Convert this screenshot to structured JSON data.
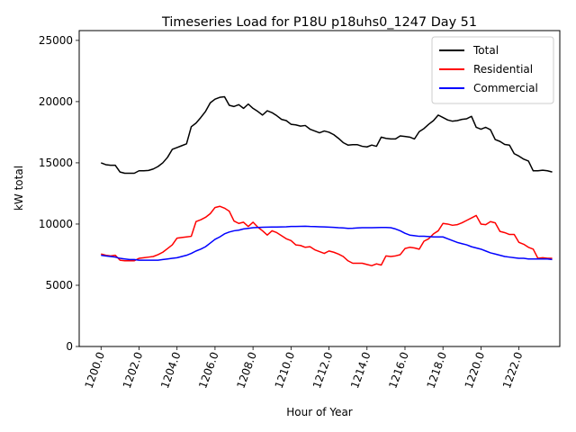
{
  "chart_data": {
    "type": "line",
    "title": "Timeseries Load for P18U p18uhs0_1247  Day 51",
    "xlabel": "Hour of Year",
    "ylabel": "kW total",
    "xlim": [
      1198.85,
      1224.15
    ],
    "ylim": [
      0,
      25800
    ],
    "x_ticks": [
      1200,
      1202,
      1204,
      1206,
      1208,
      1210,
      1212,
      1214,
      1216,
      1218,
      1220,
      1222
    ],
    "x_tick_labels": [
      "1200.0",
      "1202.0",
      "1204.0",
      "1206.0",
      "1208.0",
      "1210.0",
      "1212.0",
      "1214.0",
      "1216.0",
      "1218.0",
      "1220.0",
      "1222.0"
    ],
    "y_ticks": [
      0,
      5000,
      10000,
      15000,
      20000,
      25000
    ],
    "y_tick_labels": [
      "0",
      "5000",
      "10000",
      "15000",
      "20000",
      "25000"
    ],
    "grid": false,
    "legend_position": "top-right",
    "x": [
      1200.0,
      1200.25,
      1200.5,
      1200.75,
      1201.0,
      1201.25,
      1201.5,
      1201.75,
      1202.0,
      1202.25,
      1202.5,
      1202.75,
      1203.0,
      1203.25,
      1203.5,
      1203.75,
      1204.0,
      1204.25,
      1204.5,
      1204.75,
      1205.0,
      1205.25,
      1205.5,
      1205.75,
      1206.0,
      1206.25,
      1206.5,
      1206.75,
      1207.0,
      1207.25,
      1207.5,
      1207.75,
      1208.0,
      1208.25,
      1208.5,
      1208.75,
      1209.0,
      1209.25,
      1209.5,
      1209.75,
      1210.0,
      1210.25,
      1210.5,
      1210.75,
      1211.0,
      1211.25,
      1211.5,
      1211.75,
      1212.0,
      1212.25,
      1212.5,
      1212.75,
      1213.0,
      1213.25,
      1213.5,
      1213.75,
      1214.0,
      1214.25,
      1214.5,
      1214.75,
      1215.0,
      1215.25,
      1215.5,
      1215.75,
      1216.0,
      1216.25,
      1216.5,
      1216.75,
      1217.0,
      1217.25,
      1217.5,
      1217.75,
      1218.0,
      1218.25,
      1218.5,
      1218.75,
      1219.0,
      1219.25,
      1219.5,
      1219.75,
      1220.0,
      1220.25,
      1220.5,
      1220.75,
      1221.0,
      1221.25,
      1221.5,
      1221.75,
      1222.0,
      1222.25,
      1222.5,
      1222.75,
      1223.0,
      1223.25,
      1223.5,
      1223.75
    ],
    "series": [
      {
        "name": "Total",
        "color": "#000000",
        "values": [
          15000,
          14850,
          14800,
          14800,
          14250,
          14150,
          14150,
          14150,
          14350,
          14350,
          14380,
          14500,
          14700,
          15000,
          15450,
          16100,
          16250,
          16400,
          16550,
          17950,
          18250,
          18700,
          19200,
          19900,
          20200,
          20350,
          20400,
          19700,
          19600,
          19750,
          19450,
          19800,
          19450,
          19200,
          18900,
          19250,
          19100,
          18850,
          18550,
          18450,
          18150,
          18100,
          18000,
          18050,
          17750,
          17600,
          17450,
          17600,
          17500,
          17300,
          17000,
          16650,
          16450,
          16480,
          16480,
          16350,
          16300,
          16450,
          16350,
          17100,
          17000,
          16950,
          16950,
          17200,
          17150,
          17100,
          16950,
          17550,
          17800,
          18150,
          18450,
          18900,
          18700,
          18500,
          18400,
          18450,
          18550,
          18600,
          18800,
          17900,
          17750,
          17900,
          17700,
          16900,
          16750,
          16500,
          16450,
          15750,
          15550,
          15300,
          15150,
          14350,
          14350,
          14400,
          14350,
          14250
        ]
      },
      {
        "name": "Residential",
        "color": "#ff0000",
        "values": [
          7550,
          7450,
          7400,
          7450,
          7050,
          7000,
          7000,
          7000,
          7200,
          7250,
          7300,
          7350,
          7500,
          7700,
          8000,
          8300,
          8850,
          8900,
          8950,
          9000,
          10200,
          10350,
          10550,
          10850,
          11350,
          11450,
          11300,
          11050,
          10250,
          10050,
          10150,
          9800,
          10150,
          9750,
          9450,
          9100,
          9450,
          9300,
          9050,
          8800,
          8650,
          8300,
          8250,
          8100,
          8150,
          7900,
          7750,
          7600,
          7800,
          7700,
          7550,
          7350,
          7000,
          6800,
          6800,
          6800,
          6700,
          6600,
          6750,
          6650,
          7400,
          7350,
          7400,
          7500,
          8000,
          8100,
          8050,
          7950,
          8600,
          8800,
          9200,
          9450,
          10050,
          10000,
          9900,
          9950,
          10100,
          10300,
          10500,
          10700,
          10000,
          9950,
          10200,
          10100,
          9400,
          9300,
          9150,
          9150,
          8500,
          8350,
          8100,
          7950,
          7200,
          7250,
          7200,
          7200
        ]
      },
      {
        "name": "Commercial",
        "color": "#0000ff",
        "values": [
          7450,
          7400,
          7350,
          7300,
          7200,
          7150,
          7100,
          7100,
          7050,
          7050,
          7050,
          7050,
          7050,
          7100,
          7150,
          7200,
          7250,
          7350,
          7450,
          7600,
          7800,
          7950,
          8150,
          8450,
          8750,
          8950,
          9200,
          9350,
          9450,
          9500,
          9600,
          9650,
          9700,
          9720,
          9740,
          9750,
          9760,
          9760,
          9770,
          9780,
          9800,
          9800,
          9810,
          9820,
          9800,
          9790,
          9780,
          9770,
          9750,
          9730,
          9700,
          9680,
          9650,
          9660,
          9680,
          9700,
          9700,
          9700,
          9710,
          9720,
          9720,
          9700,
          9600,
          9450,
          9250,
          9100,
          9050,
          9000,
          9000,
          8980,
          8950,
          8950,
          8950,
          8800,
          8650,
          8500,
          8400,
          8300,
          8150,
          8050,
          7950,
          7800,
          7650,
          7550,
          7450,
          7350,
          7300,
          7250,
          7200,
          7200,
          7150,
          7150,
          7150,
          7150,
          7150,
          7100
        ]
      }
    ]
  }
}
